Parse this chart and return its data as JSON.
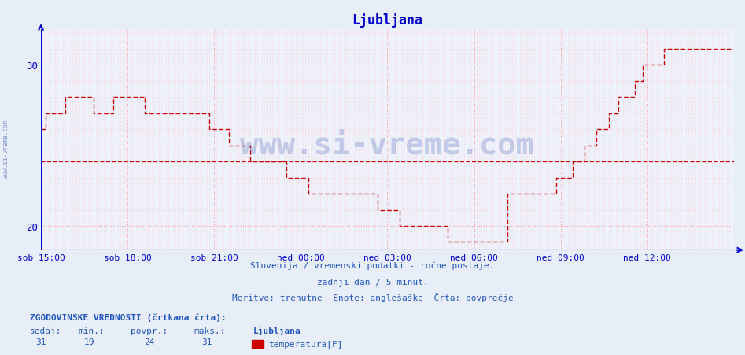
{
  "title": "Ljubljana",
  "bg_color": "#e8eef8",
  "plot_bg_color": "#eef2fc",
  "grid_color_major": "#ff9999",
  "grid_color_minor": "#ffcccc",
  "axis_color": "#0000cc",
  "line_color": "#cc0000",
  "avg_value": 24,
  "ylim": [
    18.5,
    32.2
  ],
  "yticks": [
    20,
    30
  ],
  "xlim": [
    0,
    288
  ],
  "xtick_positions": [
    0,
    36,
    72,
    108,
    144,
    180,
    216,
    252
  ],
  "xtick_labels": [
    "sob 15:00",
    "sob 18:00",
    "sob 21:00",
    "ned 00:00",
    "ned 03:00",
    "ned 06:00",
    "ned 09:00",
    "ned 12:00"
  ],
  "footer_line1": "Slovenija / vremenski podatki - ročne postaje.",
  "footer_line2": "zadnji dan / 5 minut.",
  "footer_line3": "Meritve: trenutne  Enote: anglešaške  Črta: povprečje",
  "legend_label1": "ZGODOVINSKE VREDNOSTI (črtkana črta):",
  "col_sedaj": "sedaj:",
  "col_min": "min.:",
  "col_povpr": "povpr.:",
  "col_maks": "maks.:",
  "col_station": "Ljubljana",
  "val_sedaj": "31",
  "val_min": "19",
  "val_povpr": "24",
  "val_maks": "31",
  "legend_item": "temperatura[F]",
  "watermark": "www.si-vreme.com",
  "temperature_data": [
    26,
    26,
    27,
    27,
    27,
    27,
    27,
    27,
    27,
    27,
    28,
    28,
    28,
    28,
    28,
    28,
    28,
    28,
    28,
    28,
    28,
    28,
    27,
    27,
    27,
    27,
    27,
    27,
    27,
    27,
    28,
    28,
    28,
    28,
    28,
    28,
    28,
    28,
    28,
    28,
    28,
    28,
    28,
    27,
    27,
    27,
    27,
    27,
    27,
    27,
    27,
    27,
    27,
    27,
    27,
    27,
    27,
    27,
    27,
    27,
    27,
    27,
    27,
    27,
    27,
    27,
    27,
    27,
    27,
    27,
    26,
    26,
    26,
    26,
    26,
    26,
    26,
    26,
    25,
    25,
    25,
    25,
    25,
    25,
    25,
    25,
    25,
    24,
    24,
    24,
    24,
    24,
    24,
    24,
    24,
    24,
    24,
    24,
    24,
    24,
    24,
    24,
    23,
    23,
    23,
    23,
    23,
    23,
    23,
    23,
    23,
    22,
    22,
    22,
    22,
    22,
    22,
    22,
    22,
    22,
    22,
    22,
    22,
    22,
    22,
    22,
    22,
    22,
    22,
    22,
    22,
    22,
    22,
    22,
    22,
    22,
    22,
    22,
    22,
    22,
    21,
    21,
    21,
    21,
    21,
    21,
    21,
    21,
    21,
    20,
    20,
    20,
    20,
    20,
    20,
    20,
    20,
    20,
    20,
    20,
    20,
    20,
    20,
    20,
    20,
    20,
    20,
    20,
    20,
    19,
    19,
    19,
    19,
    19,
    19,
    19,
    19,
    19,
    19,
    19,
    19,
    19,
    19,
    19,
    19,
    19,
    19,
    19,
    19,
    19,
    19,
    19,
    19,
    19,
    22,
    22,
    22,
    22,
    22,
    22,
    22,
    22,
    22,
    22,
    22,
    22,
    22,
    22,
    22,
    22,
    22,
    22,
    22,
    22,
    23,
    23,
    23,
    23,
    23,
    23,
    23,
    24,
    24,
    24,
    24,
    24,
    25,
    25,
    25,
    25,
    25,
    26,
    26,
    26,
    26,
    26,
    27,
    27,
    27,
    27,
    28,
    28,
    28,
    28,
    28,
    28,
    28,
    29,
    29,
    29,
    30,
    30,
    30,
    30,
    30,
    30,
    30,
    30,
    30,
    31,
    31,
    31,
    31,
    31,
    31,
    31,
    31,
    31,
    31,
    31,
    31,
    31,
    31,
    31,
    31,
    31,
    31,
    31,
    31,
    31,
    31,
    31,
    31,
    31,
    31,
    31,
    31,
    31
  ]
}
